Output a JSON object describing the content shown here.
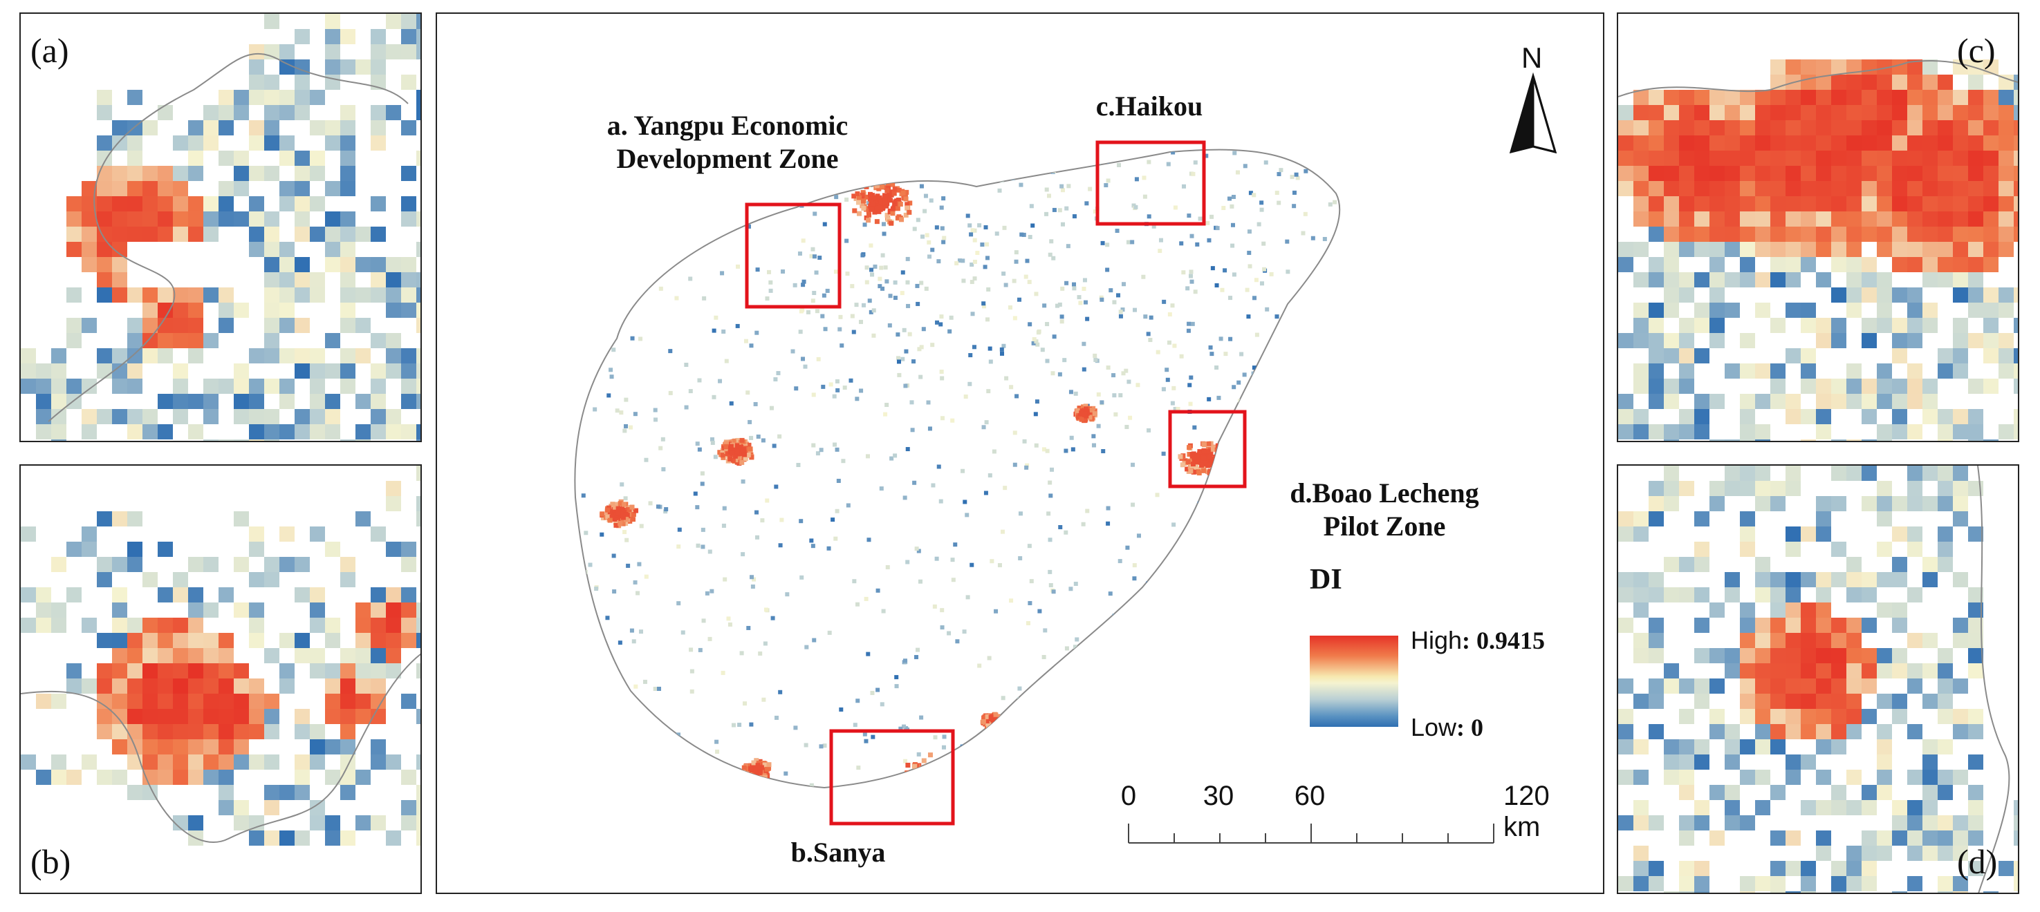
{
  "panels": {
    "a": {
      "label": "(a)"
    },
    "b": {
      "label": "(b)"
    },
    "c": {
      "label": "(c)"
    },
    "d": {
      "label": "(d)"
    }
  },
  "main_map": {
    "north_label": "N",
    "zones": [
      {
        "id": "a",
        "title_line1": "a. Yangpu Economic",
        "title_line2": "Development Zone"
      },
      {
        "id": "b",
        "title_line1": "b.Sanya",
        "title_line2": ""
      },
      {
        "id": "c",
        "title_line1": "c.Haikou",
        "title_line2": ""
      },
      {
        "id": "d",
        "title_line1": "d.Boao Lecheng",
        "title_line2": "Pilot Zone"
      }
    ]
  },
  "legend": {
    "title": "DI",
    "high_label": "High",
    "high_value": ": 0.9415",
    "low_label": "Low",
    "low_value": ": 0",
    "color_ramp": [
      "#2f6fb2",
      "#b9cfd4",
      "#f5f3d0",
      "#f07a4a",
      "#e63327"
    ]
  },
  "scale_bar": {
    "ticks": [
      "0",
      "30",
      "60",
      "120 km"
    ]
  },
  "colors": {
    "highlight_box": "#e3131b",
    "boundary": "#8a8a8a",
    "frame": "#222222"
  }
}
